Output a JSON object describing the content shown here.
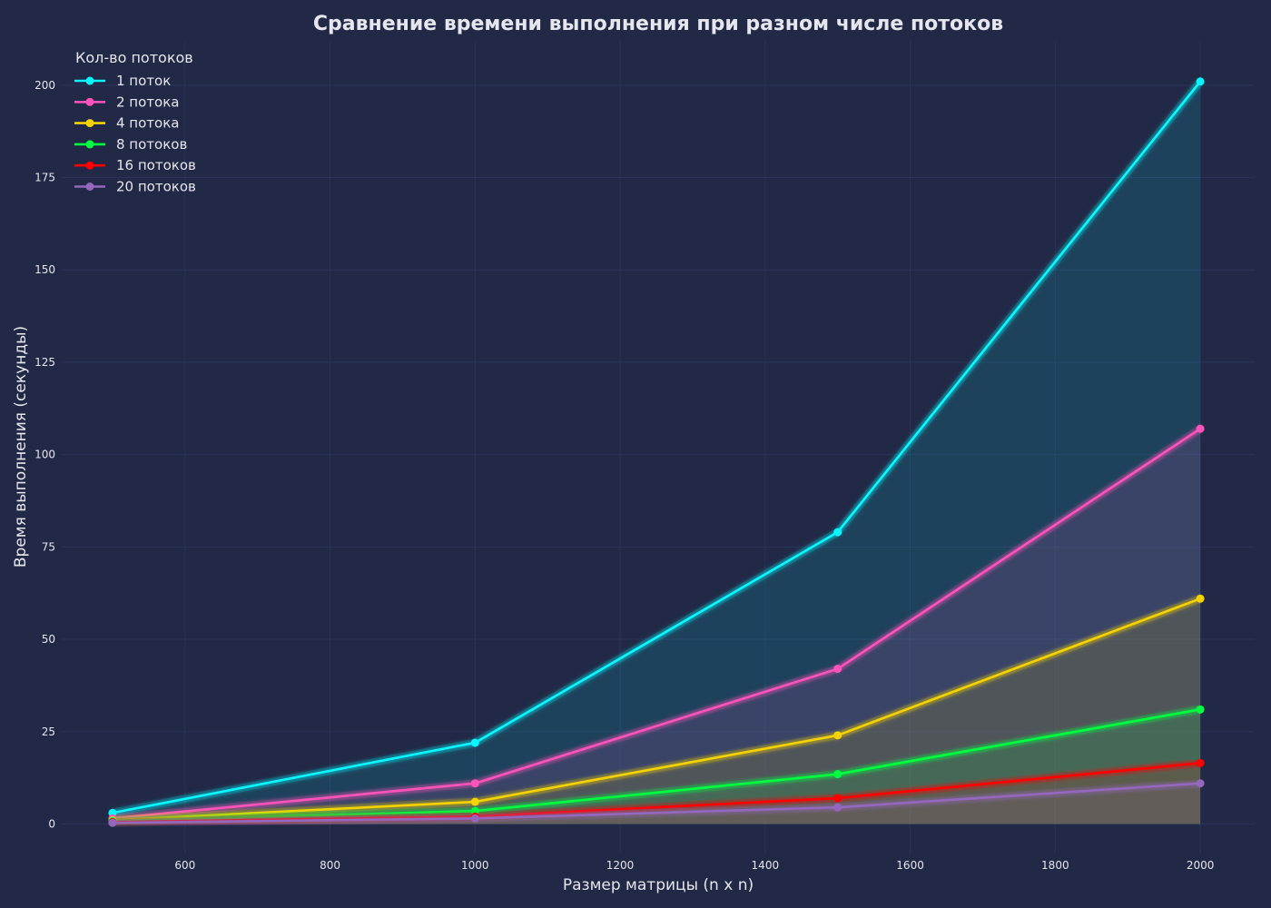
{
  "chart_data": {
    "type": "line",
    "title": "Сравнение времени выполнения при разном числе потоков",
    "xlabel": "Размер матрицы (n x n)",
    "ylabel": "Время выполнения (секунды)",
    "x": [
      500,
      1000,
      1500,
      2000
    ],
    "xlim": [
      430,
      2075
    ],
    "ylim": [
      -8,
      212
    ],
    "xticks": [
      600,
      800,
      1000,
      1200,
      1400,
      1600,
      1800,
      2000
    ],
    "yticks": [
      0,
      25,
      50,
      75,
      100,
      125,
      150,
      175,
      200
    ],
    "grid": true,
    "area_fill": true,
    "legend": {
      "title": "Кол-во потоков",
      "placement": "top-left"
    },
    "series": [
      {
        "name": "1 поток",
        "color": "#08F7FE",
        "values": [
          3.0,
          22.0,
          79.0,
          201.0
        ]
      },
      {
        "name": "2 потока",
        "color": "#FE53BB",
        "values": [
          1.5,
          11.0,
          42.0,
          107.0
        ]
      },
      {
        "name": "4 потока",
        "color": "#F5D300",
        "values": [
          1.0,
          6.0,
          24.0,
          61.0
        ]
      },
      {
        "name": "8 потоков",
        "color": "#00FF41",
        "values": [
          0.8,
          3.5,
          13.5,
          31.0
        ]
      },
      {
        "name": "16 потоков",
        "color": "#FF0000",
        "values": [
          0.5,
          2.0,
          7.0,
          16.5
        ]
      },
      {
        "name": "20 потоков",
        "color": "#9467BD",
        "values": [
          0.3,
          1.5,
          4.5,
          11.0
        ]
      }
    ]
  }
}
